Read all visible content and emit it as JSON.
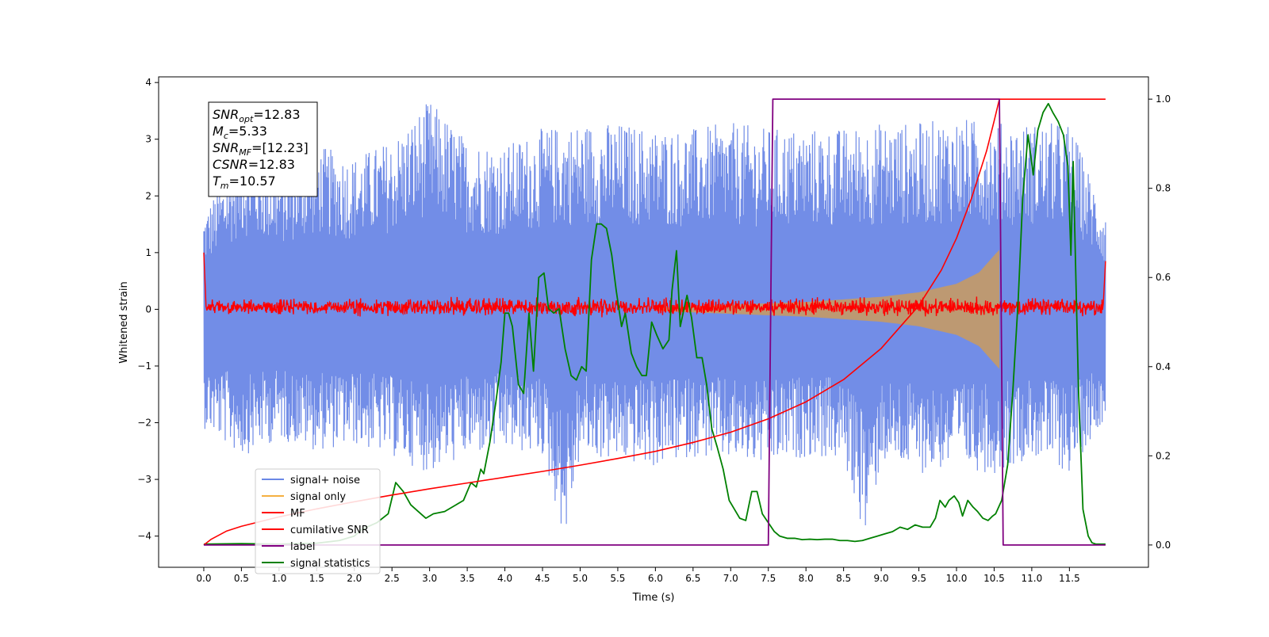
{
  "chart_data": {
    "type": "line",
    "xlabel": "Time (s)",
    "ylabel": "Whitened strain",
    "xlim": [
      -0.6,
      12.55
    ],
    "ylim": [
      -4.55,
      4.1
    ],
    "y2lim": [
      -0.05,
      1.05
    ],
    "x_ticks": [
      0.0,
      0.5,
      1.0,
      1.5,
      2.0,
      2.5,
      3.0,
      3.5,
      4.0,
      4.5,
      5.0,
      5.5,
      6.0,
      6.5,
      7.0,
      7.5,
      8.0,
      8.5,
      9.0,
      9.5,
      10.0,
      10.5,
      11.0,
      11.5
    ],
    "x_tick_labels": [
      "0.0",
      "0.5",
      "1.0",
      "1.5",
      "2.0",
      "2.5",
      "3.0",
      "3.5",
      "4.0",
      "4.5",
      "5.0",
      "5.5",
      "6.0",
      "6.5",
      "7.0",
      "7.5",
      "8.0",
      "8.5",
      "9.0",
      "9.5",
      "10.0",
      "10.5",
      "11.0",
      "11.5"
    ],
    "y_ticks": [
      -4,
      -3,
      -2,
      -1,
      0,
      1,
      2,
      3,
      4
    ],
    "y_tick_labels": [
      "−4",
      "−3",
      "−2",
      "−1",
      "0",
      "1",
      "2",
      "3",
      "4"
    ],
    "y2_ticks": [
      0.0,
      0.2,
      0.4,
      0.6,
      0.8,
      1.0
    ],
    "y2_tick_labels": [
      "0.0",
      "0.2",
      "0.4",
      "0.6",
      "0.8",
      "1.0"
    ],
    "grid": false,
    "legend_position": "lower-left",
    "series": [
      {
        "name": "signal+ noise",
        "axis": "left",
        "color": "#6a87e6",
        "envelope_min": [
          [
            0.0,
            -2.1
          ],
          [
            0.5,
            -2.6
          ],
          [
            1.0,
            -2.3
          ],
          [
            1.5,
            -2.5
          ],
          [
            2.0,
            -2.4
          ],
          [
            2.5,
            -2.6
          ],
          [
            3.0,
            -2.9
          ],
          [
            3.5,
            -2.6
          ],
          [
            4.0,
            -2.5
          ],
          [
            4.5,
            -2.6
          ],
          [
            4.8,
            -4.1
          ],
          [
            5.0,
            -2.6
          ],
          [
            5.5,
            -2.7
          ],
          [
            6.0,
            -2.8
          ],
          [
            6.5,
            -2.6
          ],
          [
            7.0,
            -2.7
          ],
          [
            7.5,
            -2.8
          ],
          [
            8.0,
            -2.6
          ],
          [
            8.5,
            -2.7
          ],
          [
            8.8,
            -4.1
          ],
          [
            9.0,
            -2.7
          ],
          [
            9.5,
            -2.9
          ],
          [
            10.0,
            -2.8
          ],
          [
            10.5,
            -2.9
          ],
          [
            11.0,
            -2.6
          ],
          [
            11.5,
            -2.9
          ],
          [
            11.98,
            -1.9
          ]
        ],
        "envelope_max": [
          [
            0.0,
            1.7
          ],
          [
            0.5,
            2.9
          ],
          [
            1.0,
            2.5
          ],
          [
            1.5,
            2.9
          ],
          [
            2.0,
            2.7
          ],
          [
            2.5,
            3.0
          ],
          [
            3.0,
            3.7
          ],
          [
            3.5,
            3.0
          ],
          [
            4.0,
            2.9
          ],
          [
            4.5,
            3.2
          ],
          [
            5.0,
            3.3
          ],
          [
            5.5,
            3.3
          ],
          [
            6.0,
            3.2
          ],
          [
            6.5,
            3.2
          ],
          [
            7.0,
            3.3
          ],
          [
            7.5,
            3.2
          ],
          [
            8.0,
            3.2
          ],
          [
            8.5,
            3.2
          ],
          [
            9.0,
            3.3
          ],
          [
            9.5,
            3.3
          ],
          [
            10.0,
            3.4
          ],
          [
            10.5,
            3.3
          ],
          [
            11.0,
            3.3
          ],
          [
            11.5,
            3.3
          ],
          [
            11.98,
            1.7
          ]
        ]
      },
      {
        "name": "signal only",
        "axis": "left",
        "color": "#f5b041",
        "amplitude_envelope": [
          [
            6.0,
            0.03
          ],
          [
            7.0,
            0.08
          ],
          [
            8.0,
            0.13
          ],
          [
            9.0,
            0.22
          ],
          [
            9.5,
            0.3
          ],
          [
            10.0,
            0.45
          ],
          [
            10.3,
            0.65
          ],
          [
            10.5,
            0.95
          ],
          [
            10.57,
            1.05
          ]
        ]
      },
      {
        "name": "MF",
        "axis": "left",
        "color": "#ff0000",
        "band_min": [
          [
            0.0,
            -0.1
          ],
          [
            2.0,
            -0.12
          ],
          [
            6.0,
            -0.12
          ],
          [
            10.0,
            -0.12
          ],
          [
            11.95,
            -0.1
          ]
        ],
        "band_max": [
          [
            0.0,
            0.15
          ],
          [
            2.0,
            0.2
          ],
          [
            6.0,
            0.2
          ],
          [
            10.0,
            0.2
          ],
          [
            11.95,
            0.18
          ]
        ],
        "endpoints": [
          [
            0.0,
            1.0
          ],
          [
            0.03,
            0.05
          ],
          [
            11.95,
            0.1
          ],
          [
            11.98,
            0.85
          ]
        ]
      },
      {
        "name": "cumilative SNR",
        "axis": "right",
        "color": "#ff0000",
        "points": [
          [
            0.0,
            0.0
          ],
          [
            0.1,
            0.013
          ],
          [
            0.3,
            0.031
          ],
          [
            0.5,
            0.042
          ],
          [
            1.0,
            0.063
          ],
          [
            1.5,
            0.081
          ],
          [
            2.0,
            0.097
          ],
          [
            2.5,
            0.112
          ],
          [
            3.0,
            0.126
          ],
          [
            3.5,
            0.139
          ],
          [
            4.0,
            0.152
          ],
          [
            4.5,
            0.165
          ],
          [
            5.0,
            0.179
          ],
          [
            5.5,
            0.194
          ],
          [
            6.0,
            0.21
          ],
          [
            6.5,
            0.23
          ],
          [
            7.0,
            0.253
          ],
          [
            7.5,
            0.283
          ],
          [
            8.0,
            0.321
          ],
          [
            8.5,
            0.371
          ],
          [
            9.0,
            0.441
          ],
          [
            9.5,
            0.537
          ],
          [
            9.8,
            0.617
          ],
          [
            10.0,
            0.688
          ],
          [
            10.2,
            0.778
          ],
          [
            10.4,
            0.884
          ],
          [
            10.5,
            0.951
          ],
          [
            10.57,
            1.0
          ],
          [
            11.98,
            1.0
          ]
        ]
      },
      {
        "name": "label",
        "axis": "right",
        "color": "#800080",
        "points": [
          [
            0.0,
            0.0
          ],
          [
            7.5,
            0.0
          ],
          [
            7.56,
            1.0
          ],
          [
            10.57,
            1.0
          ],
          [
            10.62,
            0.0
          ],
          [
            11.98,
            0.0
          ]
        ]
      },
      {
        "name": "signal statistics",
        "axis": "right",
        "color": "#008000",
        "points": [
          [
            0.0,
            0.002
          ],
          [
            0.5,
            0.003
          ],
          [
            1.0,
            0.002
          ],
          [
            1.5,
            0.004
          ],
          [
            1.8,
            0.01
          ],
          [
            2.0,
            0.02
          ],
          [
            2.1,
            0.035
          ],
          [
            2.3,
            0.05
          ],
          [
            2.45,
            0.07
          ],
          [
            2.55,
            0.14
          ],
          [
            2.65,
            0.12
          ],
          [
            2.75,
            0.09
          ],
          [
            2.85,
            0.075
          ],
          [
            2.95,
            0.06
          ],
          [
            3.05,
            0.07
          ],
          [
            3.2,
            0.075
          ],
          [
            3.35,
            0.09
          ],
          [
            3.45,
            0.1
          ],
          [
            3.55,
            0.14
          ],
          [
            3.62,
            0.13
          ],
          [
            3.68,
            0.17
          ],
          [
            3.72,
            0.16
          ],
          [
            3.8,
            0.23
          ],
          [
            3.88,
            0.32
          ],
          [
            3.95,
            0.41
          ],
          [
            4.0,
            0.52
          ],
          [
            4.05,
            0.52
          ],
          [
            4.1,
            0.49
          ],
          [
            4.18,
            0.36
          ],
          [
            4.25,
            0.34
          ],
          [
            4.32,
            0.52
          ],
          [
            4.38,
            0.39
          ],
          [
            4.45,
            0.6
          ],
          [
            4.52,
            0.61
          ],
          [
            4.58,
            0.53
          ],
          [
            4.65,
            0.52
          ],
          [
            4.72,
            0.53
          ],
          [
            4.8,
            0.44
          ],
          [
            4.88,
            0.38
          ],
          [
            4.95,
            0.37
          ],
          [
            5.02,
            0.4
          ],
          [
            5.08,
            0.39
          ],
          [
            5.15,
            0.64
          ],
          [
            5.22,
            0.72
          ],
          [
            5.28,
            0.72
          ],
          [
            5.35,
            0.71
          ],
          [
            5.42,
            0.65
          ],
          [
            5.48,
            0.57
          ],
          [
            5.55,
            0.49
          ],
          [
            5.6,
            0.52
          ],
          [
            5.68,
            0.43
          ],
          [
            5.75,
            0.4
          ],
          [
            5.82,
            0.38
          ],
          [
            5.88,
            0.38
          ],
          [
            5.95,
            0.5
          ],
          [
            6.02,
            0.47
          ],
          [
            6.1,
            0.44
          ],
          [
            6.18,
            0.46
          ],
          [
            6.22,
            0.57
          ],
          [
            6.28,
            0.66
          ],
          [
            6.33,
            0.49
          ],
          [
            6.38,
            0.53
          ],
          [
            6.42,
            0.56
          ],
          [
            6.48,
            0.51
          ],
          [
            6.55,
            0.42
          ],
          [
            6.62,
            0.42
          ],
          [
            6.68,
            0.36
          ],
          [
            6.75,
            0.26
          ],
          [
            6.82,
            0.22
          ],
          [
            6.9,
            0.17
          ],
          [
            6.98,
            0.1
          ],
          [
            7.05,
            0.08
          ],
          [
            7.12,
            0.06
          ],
          [
            7.2,
            0.055
          ],
          [
            7.28,
            0.12
          ],
          [
            7.35,
            0.12
          ],
          [
            7.42,
            0.07
          ],
          [
            7.5,
            0.05
          ],
          [
            7.58,
            0.03
          ],
          [
            7.65,
            0.02
          ],
          [
            7.75,
            0.015
          ],
          [
            7.85,
            0.015
          ],
          [
            7.95,
            0.012
          ],
          [
            8.05,
            0.013
          ],
          [
            8.15,
            0.012
          ],
          [
            8.25,
            0.013
          ],
          [
            8.35,
            0.013
          ],
          [
            8.45,
            0.01
          ],
          [
            8.55,
            0.01
          ],
          [
            8.65,
            0.008
          ],
          [
            8.75,
            0.01
          ],
          [
            8.85,
            0.015
          ],
          [
            8.95,
            0.02
          ],
          [
            9.05,
            0.025
          ],
          [
            9.15,
            0.03
          ],
          [
            9.25,
            0.04
          ],
          [
            9.35,
            0.035
          ],
          [
            9.45,
            0.045
          ],
          [
            9.55,
            0.04
          ],
          [
            9.65,
            0.04
          ],
          [
            9.72,
            0.06
          ],
          [
            9.78,
            0.1
          ],
          [
            9.85,
            0.085
          ],
          [
            9.9,
            0.1
          ],
          [
            9.97,
            0.11
          ],
          [
            10.03,
            0.095
          ],
          [
            10.08,
            0.065
          ],
          [
            10.15,
            0.1
          ],
          [
            10.22,
            0.085
          ],
          [
            10.28,
            0.075
          ],
          [
            10.35,
            0.06
          ],
          [
            10.42,
            0.055
          ],
          [
            10.48,
            0.065
          ],
          [
            10.52,
            0.07
          ],
          [
            10.6,
            0.1
          ],
          [
            10.68,
            0.18
          ],
          [
            10.75,
            0.35
          ],
          [
            10.82,
            0.55
          ],
          [
            10.88,
            0.78
          ],
          [
            10.95,
            0.92
          ],
          [
            11.02,
            0.83
          ],
          [
            11.08,
            0.93
          ],
          [
            11.15,
            0.97
          ],
          [
            11.22,
            0.99
          ],
          [
            11.28,
            0.97
          ],
          [
            11.35,
            0.95
          ],
          [
            11.42,
            0.92
          ],
          [
            11.48,
            0.85
          ],
          [
            11.52,
            0.65
          ],
          [
            11.55,
            0.86
          ],
          [
            11.62,
            0.35
          ],
          [
            11.68,
            0.08
          ],
          [
            11.75,
            0.02
          ],
          [
            11.8,
            0.005
          ],
          [
            11.85,
            0.002
          ],
          [
            11.9,
            0.002
          ],
          [
            11.98,
            0.002
          ]
        ]
      }
    ]
  },
  "stats_box": {
    "snr_opt": "=12.83",
    "mc": "=5.33",
    "snr_mf": "=[12.23]",
    "csnr": "=12.83",
    "tm": "=10.57"
  },
  "legend": [
    {
      "label": "signal+ noise",
      "color": "#6a87e6"
    },
    {
      "label": "signal only",
      "color": "#f5b041"
    },
    {
      "label": "MF",
      "color": "#ff0000"
    },
    {
      "label": "cumilative SNR",
      "color": "#ff0000"
    },
    {
      "label": "label",
      "color": "#800080"
    },
    {
      "label": "signal statistics",
      "color": "#008000"
    }
  ]
}
